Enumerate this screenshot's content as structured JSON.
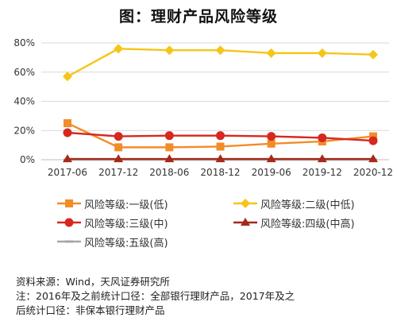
{
  "title": "图：理财产品风险等级",
  "chart_data": {
    "type": "line",
    "x": [
      "2017-06",
      "2017-12",
      "2018-06",
      "2018-12",
      "2019-06",
      "2019-12",
      "2020-12"
    ],
    "ylim": [
      0,
      80
    ],
    "yticks": [
      "0%",
      "20%",
      "40%",
      "60%",
      "80%"
    ],
    "grid": true,
    "legend_position": "bottom",
    "series": [
      {
        "name": "风险等级:一级(低)",
        "color": "#F28C28",
        "marker": "square",
        "values": [
          25,
          8.5,
          8.5,
          9,
          11,
          12.5,
          16
        ]
      },
      {
        "name": "风险等级:二级(中低)",
        "color": "#F5C518",
        "marker": "diamond",
        "values": [
          57,
          76,
          75,
          75,
          73,
          73,
          72
        ]
      },
      {
        "name": "风险等级:三级(中)",
        "color": "#D7281E",
        "marker": "circle",
        "values": [
          18.5,
          16,
          16.5,
          16.5,
          16,
          15,
          13
        ]
      },
      {
        "name": "风险等级:四级(中高)",
        "color": "#A52A1A",
        "marker": "triangle",
        "values": [
          0.5,
          0.5,
          0.5,
          0.5,
          0.5,
          0.5,
          0.5
        ]
      },
      {
        "name": "风险等级:五级(高)",
        "color": "#A6A6A6",
        "marker": "dash",
        "values": [
          0,
          0,
          0,
          0,
          0,
          0,
          0
        ]
      }
    ]
  },
  "notes": {
    "source": "资料来源：Wind，天风证券研究所",
    "note_line1": "注：2016年及之前统计口径：全部银行理财产品，2017年及之",
    "note_line2": "后统计口径：非保本银行理财产品"
  }
}
